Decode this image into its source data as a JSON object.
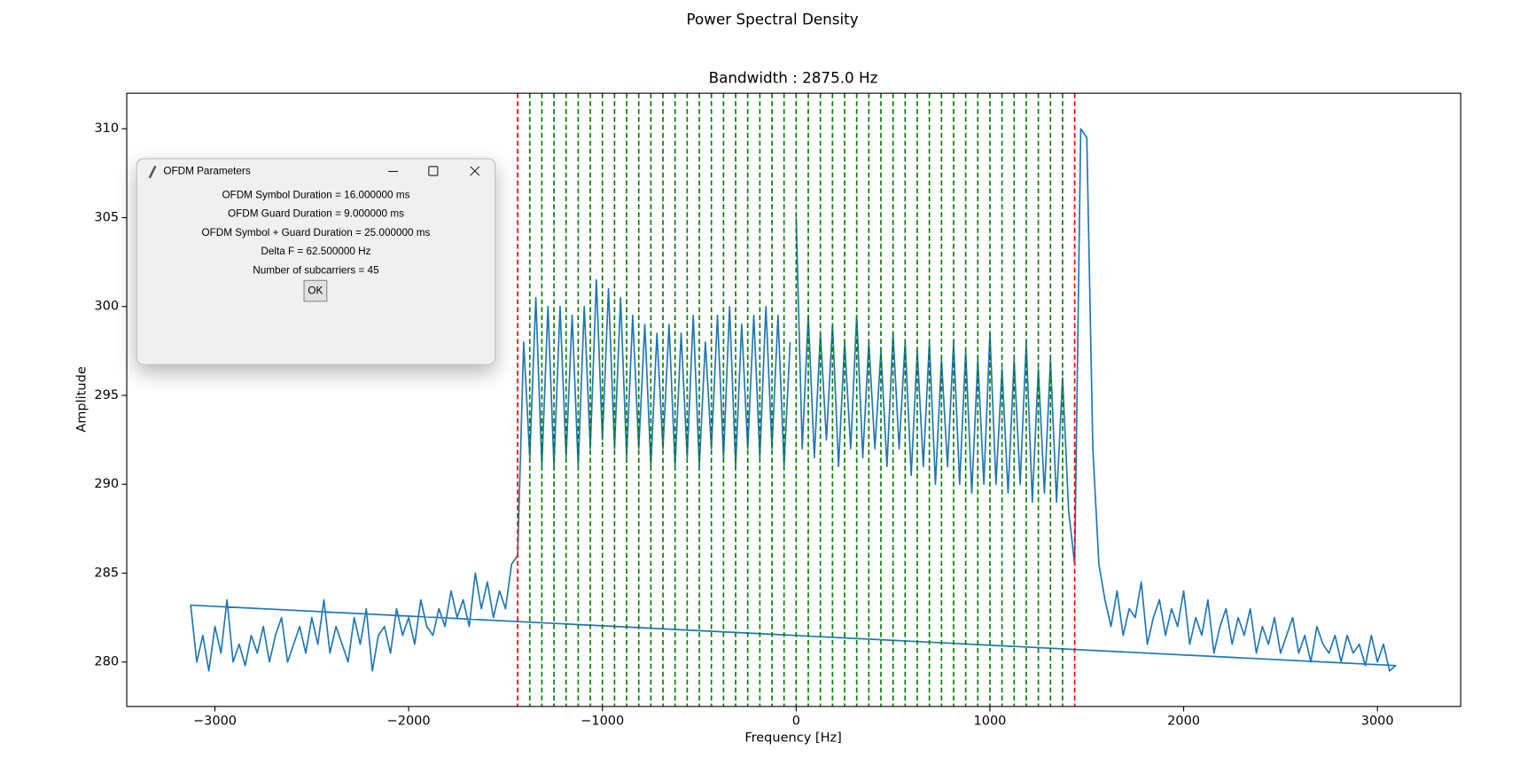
{
  "chart_data": {
    "type": "line",
    "suptitle": "Power Spectral Density",
    "title": "Bandwidth : 2875.0 Hz",
    "x_label": "Frequency [Hz]",
    "y_label": "Amplitude",
    "color": "#1f77b4",
    "x": [
      0,
      31.25,
      62.5,
      93.75,
      125,
      156.25,
      187.5,
      218.75,
      250,
      281.25,
      312.5,
      343.75,
      375,
      406.25,
      437.5,
      468.75,
      500,
      531.25,
      562.5,
      593.75,
      625,
      656.25,
      687.5,
      718.75,
      750,
      781.25,
      812.5,
      843.75,
      875,
      906.25,
      937.5,
      968.75,
      1000,
      1031.25,
      1062.5,
      1093.75,
      1125,
      1156.25,
      1187.5,
      1218.75,
      1250,
      1281.25,
      1312.5,
      1343.75,
      1375,
      1406.25,
      1437.5,
      1468.75,
      1500,
      1531.25,
      1562.5,
      1593.75,
      1625,
      1656.25,
      1687.5,
      1718.75,
      1750,
      1781.25,
      1812.5,
      1843.75,
      1875,
      1906.25,
      1937.5,
      1968.75,
      2000,
      2031.25,
      2062.5,
      2093.75,
      2125,
      2156.25,
      2187.5,
      2218.75,
      2250,
      2281.25,
      2312.5,
      2343.75,
      2375,
      2406.25,
      2437.5,
      2468.75,
      2500,
      2531.25,
      2562.5,
      2593.75,
      2625,
      2656.25,
      2687.5,
      2718.75,
      2750,
      2781.25,
      2812.5,
      2843.75,
      2875,
      2906.25,
      2937.5,
      2968.75,
      3000,
      3031.25,
      3062.5,
      3093.75,
      -3125,
      -3093.75,
      -3062.5,
      -3031.25,
      -3000,
      -2968.75,
      -2937.5,
      -2906.25,
      -2875,
      -2843.75,
      -2812.5,
      -2781.25,
      -2750,
      -2718.75,
      -2687.5,
      -2656.25,
      -2625,
      -2593.75,
      -2562.5,
      -2531.25,
      -2500,
      -2468.75,
      -2437.5,
      -2406.25,
      -2375,
      -2343.75,
      -2312.5,
      -2281.25,
      -2250,
      -2218.75,
      -2187.5,
      -2156.25,
      -2125,
      -2093.75,
      -2062.5,
      -2031.25,
      -2000,
      -1968.75,
      -1937.5,
      -1906.25,
      -1875,
      -1843.75,
      -1812.5,
      -1781.25,
      -1750,
      -1718.75,
      -1687.5,
      -1656.25,
      -1625,
      -1593.75,
      -1562.5,
      -1531.25,
      -1500,
      -1468.75,
      -1437.5,
      -1406.25,
      -1375,
      -1343.75,
      -1312.5,
      -1281.25,
      -1250,
      -1218.75,
      -1187.5,
      -1156.25,
      -1125,
      -1093.75,
      -1062.5,
      -1031.25,
      -1000,
      -968.75,
      -937.5,
      -906.25,
      -875,
      -843.75,
      -812.5,
      -781.25,
      -750,
      -718.75,
      -687.5,
      -656.25,
      -625,
      -593.75,
      -562.5,
      -531.25,
      -500,
      -468.75,
      -437.5,
      -406.25,
      -375,
      -343.75,
      -312.5,
      -281.25,
      -250,
      -218.75,
      -187.5,
      -156.25,
      -125,
      -93.75,
      -62.5,
      -31.25
    ],
    "values": [
      305,
      292,
      299.5,
      291.5,
      298.5,
      292.5,
      299,
      291,
      298,
      292,
      299.5,
      291.5,
      298,
      292,
      297.5,
      291,
      298.5,
      292,
      298,
      290.5,
      297.5,
      291,
      298,
      290,
      297,
      291,
      298,
      290,
      297.5,
      289.5,
      297,
      290,
      298.5,
      290,
      296.5,
      289.5,
      297,
      290,
      298,
      289,
      296.5,
      289.5,
      297,
      289,
      296,
      288.5,
      285.5,
      310,
      309.5,
      292,
      285.5,
      283.5,
      282,
      284,
      281.5,
      283,
      282.5,
      284.5,
      281,
      282.5,
      283.5,
      281.5,
      283,
      282,
      284,
      281,
      282.5,
      281.5,
      283.5,
      280.5,
      282,
      283,
      281,
      282.5,
      281.5,
      283,
      280.5,
      282,
      281,
      282.5,
      280.5,
      281.5,
      282.5,
      280.5,
      281.5,
      280,
      282,
      281,
      280.5,
      281.5,
      280,
      281.5,
      280.5,
      281,
      279.8,
      281.5,
      280,
      281,
      279.5,
      279.8,
      283.2,
      280,
      281.5,
      279.5,
      282,
      280.5,
      283.5,
      280,
      281,
      279.8,
      281.5,
      280.5,
      282,
      280,
      281.5,
      282.5,
      280,
      281,
      282,
      280.5,
      282.5,
      281,
      283.5,
      280.5,
      282,
      281,
      280,
      282.5,
      281,
      283,
      279.5,
      281.5,
      282,
      280.5,
      283,
      281.5,
      282.5,
      281,
      283.5,
      282,
      281.5,
      283,
      282,
      284,
      282.5,
      283.5,
      282,
      285,
      283,
      284.5,
      282.5,
      284,
      283,
      285.5,
      286,
      298,
      291.5,
      300.5,
      291,
      300,
      291,
      300,
      291.5,
      299.5,
      291,
      300,
      292,
      301.5,
      292.5,
      301,
      292,
      300.5,
      291.5,
      299.5,
      292,
      299,
      291,
      298.5,
      292,
      299,
      291,
      298.5,
      291.5,
      299.5,
      291,
      298,
      292,
      299.5,
      291.5,
      300,
      291,
      299,
      292,
      299.5,
      291.5,
      300,
      292,
      299.5,
      291,
      298
    ],
    "vlines": [
      {
        "color": "#ff0000",
        "values": [
          -1437.5,
          1437.5
        ]
      },
      {
        "color": "#008000",
        "values": [
          -1375,
          -1312.5,
          -1250,
          -1187.5,
          -1125,
          -1062.5,
          -1000,
          -937.5,
          -875,
          -812.5,
          -750,
          -687.5,
          -625,
          -562.5,
          -500,
          -437.5,
          -375,
          -312.5,
          -250,
          -187.5,
          -125,
          -62.5,
          0,
          62.5,
          125,
          187.5,
          250,
          312.5,
          375,
          437.5,
          500,
          562.5,
          625,
          687.5,
          750,
          812.5,
          875,
          937.5,
          1000,
          1062.5,
          1125,
          1187.5,
          1250,
          1312.5,
          1375
        ]
      }
    ],
    "xlim": [
      -3455,
      3430
    ],
    "ylim": [
      277.5,
      312
    ],
    "xticks": [
      {
        "value": -3000,
        "label": "−3000"
      },
      {
        "value": -2000,
        "label": "−2000"
      },
      {
        "value": -1000,
        "label": "−1000"
      },
      0,
      1000,
      2000,
      3000
    ],
    "yticks": [
      280,
      285,
      290,
      295,
      300,
      305,
      310
    ],
    "grid": false
  },
  "dialog": {
    "title": "OFDM Parameters",
    "lines": [
      "OFDM Symbol Duration = 16.000000 ms",
      "OFDM Guard Duration = 9.000000 ms",
      "OFDM Symbol + Guard Duration = 25.000000 ms",
      "Delta F = 62.500000 Hz",
      "Number of subcarriers = 45"
    ],
    "button": "OK"
  }
}
